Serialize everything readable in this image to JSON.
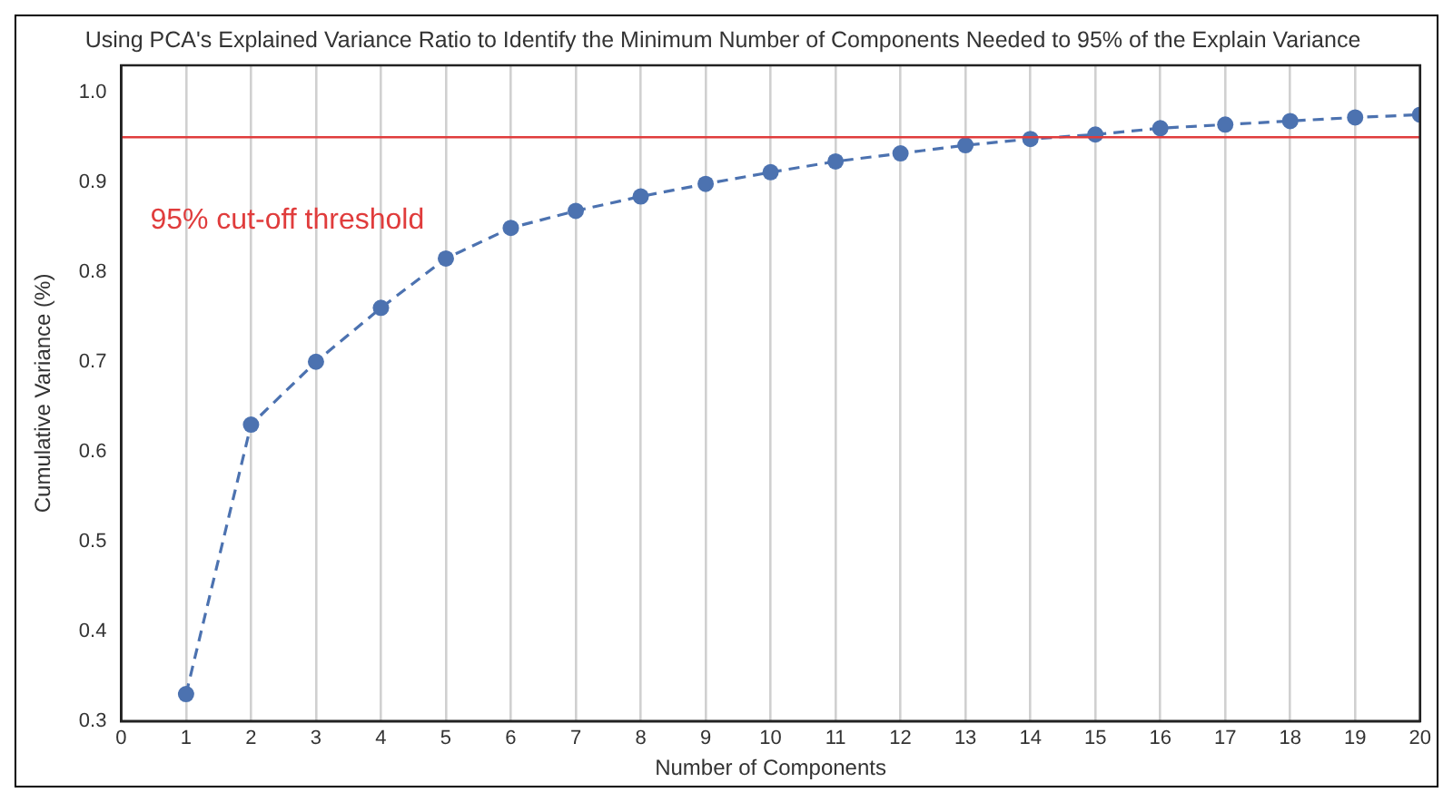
{
  "chart_data": {
    "type": "line",
    "title": "Using PCA's Explained Variance Ratio to Identify the Minimum Number of Components Needed to 95% of the Explain Variance",
    "xlabel": "Number of Components",
    "ylabel": "Cumulative Variance (%)",
    "x": [
      1,
      2,
      3,
      4,
      5,
      6,
      7,
      8,
      9,
      10,
      11,
      12,
      13,
      14,
      15,
      16,
      17,
      18,
      19,
      20
    ],
    "series": [
      {
        "color": "#4c72b0",
        "values": [
          0.33,
          0.63,
          0.7,
          0.76,
          0.815,
          0.849,
          0.868,
          0.884,
          0.898,
          0.911,
          0.923,
          0.932,
          0.941,
          0.948,
          0.953,
          0.96,
          0.964,
          0.968,
          0.972,
          0.975
        ]
      }
    ],
    "xlim": [
      0,
      20
    ],
    "xticks": [
      0,
      1,
      2,
      3,
      4,
      5,
      6,
      7,
      8,
      9,
      10,
      11,
      12,
      13,
      14,
      15,
      16,
      17,
      18,
      19,
      20
    ],
    "ylim": [
      0.3,
      1.03
    ],
    "yticks": [
      {
        "value": 0.3,
        "label": "0.3"
      },
      {
        "value": 0.4,
        "label": "0.4"
      },
      {
        "value": 0.5,
        "label": "0.5"
      },
      {
        "value": 0.6,
        "label": "0.6"
      },
      {
        "value": 0.7,
        "label": "0.7"
      },
      {
        "value": 0.8,
        "label": "0.8"
      },
      {
        "value": 0.9,
        "label": "0.9"
      },
      {
        "value": 1.0,
        "label": "1.0"
      }
    ],
    "ref_lines": [
      {
        "axis": "y",
        "value": 0.95,
        "label": "95% cut-off threshold",
        "color": "#e03c3c"
      }
    ],
    "grid": "x",
    "legend": false,
    "marker": "circle",
    "line_style": "dashed"
  }
}
